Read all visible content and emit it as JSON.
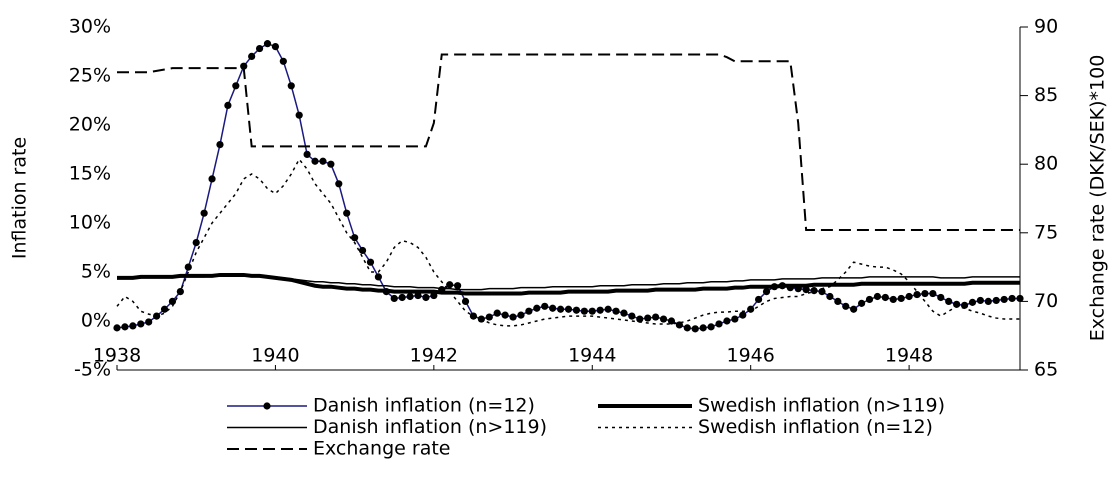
{
  "chart_data": {
    "type": "line",
    "y_label": "Inflation rate",
    "y2_label": "Exchange rate (DKK/SEK)*100",
    "xlim": [
      1938,
      1949.4
    ],
    "xticks": [
      1938,
      1940,
      1942,
      1944,
      1946,
      1948
    ],
    "ylim": [
      -5,
      30
    ],
    "yticks": [
      {
        "value": -5,
        "label": "-5%"
      },
      {
        "value": 0,
        "label": "0%"
      },
      {
        "value": 5,
        "label": "5%"
      },
      {
        "value": 10,
        "label": "10%"
      },
      {
        "value": 15,
        "label": "15%"
      },
      {
        "value": 20,
        "label": "20%"
      },
      {
        "value": 25,
        "label": "25%"
      },
      {
        "value": 30,
        "label": "30%"
      }
    ],
    "y2lim": [
      65,
      90
    ],
    "y2ticks": [
      65,
      70,
      75,
      80,
      85,
      90
    ],
    "x": [
      1938.0,
      1938.1,
      1938.2,
      1938.3,
      1938.4,
      1938.5,
      1938.6,
      1938.7,
      1938.8,
      1938.9,
      1939.0,
      1939.1,
      1939.2,
      1939.3,
      1939.4,
      1939.5,
      1939.6,
      1939.7,
      1939.8,
      1939.9,
      1940.0,
      1940.1,
      1940.2,
      1940.3,
      1940.4,
      1940.5,
      1940.6,
      1940.7,
      1940.8,
      1940.9,
      1941.0,
      1941.1,
      1941.2,
      1941.3,
      1941.4,
      1941.5,
      1941.6,
      1941.7,
      1941.8,
      1941.9,
      1942.0,
      1942.1,
      1942.2,
      1942.3,
      1942.4,
      1942.5,
      1942.6,
      1942.7,
      1942.8,
      1942.9,
      1943.0,
      1943.1,
      1943.2,
      1943.3,
      1943.4,
      1943.5,
      1943.6,
      1943.7,
      1943.8,
      1943.9,
      1944.0,
      1944.1,
      1944.2,
      1944.3,
      1944.4,
      1944.5,
      1944.6,
      1944.7,
      1944.8,
      1944.9,
      1945.0,
      1945.1,
      1945.2,
      1945.3,
      1945.4,
      1945.5,
      1945.6,
      1945.7,
      1945.8,
      1945.9,
      1946.0,
      1946.1,
      1946.2,
      1946.3,
      1946.4,
      1946.5,
      1946.6,
      1946.7,
      1946.8,
      1946.9,
      1947.0,
      1947.1,
      1947.2,
      1947.3,
      1947.4,
      1947.5,
      1947.6,
      1947.7,
      1947.8,
      1947.9,
      1948.0,
      1948.1,
      1948.2,
      1948.3,
      1948.4,
      1948.5,
      1948.6,
      1948.7,
      1948.8,
      1948.9,
      1949.0,
      1949.1,
      1949.2,
      1949.3,
      1949.4
    ],
    "series": [
      {
        "name": "Danish inflation (n=12)",
        "color": "#1a1a80",
        "width": 1.5,
        "dash": "solid",
        "marker": "circle",
        "marker_color": "#000000",
        "values": [
          -0.7,
          -0.6,
          -0.5,
          -0.3,
          -0.1,
          0.5,
          1.2,
          2.0,
          3.0,
          5.5,
          8.0,
          11.0,
          14.5,
          18.0,
          22.0,
          24.0,
          26.0,
          27.0,
          27.8,
          28.3,
          28.0,
          26.5,
          24.0,
          21.0,
          17.0,
          16.3,
          16.3,
          16.0,
          14.0,
          11.0,
          8.5,
          7.2,
          6.0,
          4.5,
          3.0,
          2.3,
          2.4,
          2.5,
          2.6,
          2.4,
          2.6,
          3.2,
          3.7,
          3.6,
          2.0,
          0.5,
          0.2,
          0.4,
          0.8,
          0.6,
          0.4,
          0.6,
          1.0,
          1.3,
          1.5,
          1.3,
          1.2,
          1.2,
          1.1,
          1.0,
          1.0,
          1.1,
          1.2,
          1.0,
          0.8,
          0.5,
          0.2,
          0.3,
          0.4,
          0.2,
          0.0,
          -0.4,
          -0.7,
          -0.8,
          -0.7,
          -0.6,
          -0.3,
          0.0,
          0.2,
          0.6,
          1.2,
          2.2,
          3.0,
          3.5,
          3.6,
          3.4,
          3.3,
          3.2,
          3.1,
          3.0,
          2.5,
          2.0,
          1.5,
          1.2,
          1.8,
          2.2,
          2.5,
          2.4,
          2.2,
          2.3,
          2.5,
          2.7,
          2.8,
          2.8,
          2.4,
          2.0,
          1.7,
          1.6,
          1.9,
          2.1,
          2.0,
          2.1,
          2.2,
          2.3,
          2.3
        ]
      },
      {
        "name": "Swedish inflation (n>119)",
        "color": "#000000",
        "width": 4,
        "dash": "solid",
        "values": [
          4.4,
          4.4,
          4.4,
          4.5,
          4.5,
          4.5,
          4.5,
          4.5,
          4.6,
          4.6,
          4.6,
          4.6,
          4.6,
          4.7,
          4.7,
          4.7,
          4.7,
          4.6,
          4.6,
          4.5,
          4.4,
          4.3,
          4.2,
          4.0,
          3.8,
          3.6,
          3.5,
          3.5,
          3.4,
          3.3,
          3.3,
          3.2,
          3.2,
          3.1,
          3.1,
          3.0,
          3.0,
          3.0,
          3.0,
          3.0,
          3.0,
          2.9,
          2.9,
          2.9,
          2.8,
          2.8,
          2.8,
          2.8,
          2.8,
          2.8,
          2.8,
          2.8,
          2.9,
          2.9,
          2.9,
          2.9,
          2.9,
          3.0,
          3.0,
          3.0,
          3.0,
          3.0,
          3.0,
          3.1,
          3.1,
          3.1,
          3.1,
          3.1,
          3.2,
          3.2,
          3.2,
          3.2,
          3.2,
          3.2,
          3.3,
          3.3,
          3.3,
          3.3,
          3.4,
          3.4,
          3.5,
          3.5,
          3.5,
          3.5,
          3.6,
          3.6,
          3.6,
          3.6,
          3.7,
          3.7,
          3.7,
          3.7,
          3.7,
          3.7,
          3.8,
          3.8,
          3.8,
          3.8,
          3.8,
          3.8,
          3.8,
          3.8,
          3.8,
          3.8,
          3.8,
          3.8,
          3.8,
          3.8,
          3.9,
          3.9,
          3.9,
          3.9,
          3.9,
          3.9,
          3.9
        ]
      },
      {
        "name": "Danish inflation (n>119)",
        "color": "#000000",
        "width": 1.5,
        "dash": "solid",
        "values": [
          4.4,
          4.4,
          4.4,
          4.4,
          4.5,
          4.5,
          4.5,
          4.5,
          4.5,
          4.5,
          4.5,
          4.5,
          4.6,
          4.6,
          4.6,
          4.6,
          4.6,
          4.6,
          4.6,
          4.5,
          4.4,
          4.4,
          4.3,
          4.2,
          4.1,
          4.0,
          4.0,
          3.9,
          3.9,
          3.8,
          3.8,
          3.7,
          3.7,
          3.6,
          3.6,
          3.5,
          3.5,
          3.5,
          3.4,
          3.4,
          3.4,
          3.3,
          3.3,
          3.2,
          3.2,
          3.2,
          3.2,
          3.3,
          3.3,
          3.3,
          3.3,
          3.4,
          3.4,
          3.4,
          3.4,
          3.5,
          3.5,
          3.5,
          3.5,
          3.5,
          3.5,
          3.6,
          3.6,
          3.6,
          3.6,
          3.7,
          3.7,
          3.7,
          3.7,
          3.8,
          3.8,
          3.8,
          3.9,
          3.9,
          3.9,
          4.0,
          4.0,
          4.0,
          4.1,
          4.1,
          4.2,
          4.2,
          4.2,
          4.2,
          4.3,
          4.3,
          4.3,
          4.3,
          4.3,
          4.4,
          4.4,
          4.4,
          4.4,
          4.4,
          4.4,
          4.5,
          4.5,
          4.5,
          4.5,
          4.5,
          4.5,
          4.5,
          4.5,
          4.5,
          4.4,
          4.4,
          4.4,
          4.4,
          4.5,
          4.5,
          4.5,
          4.5,
          4.5,
          4.5,
          4.5
        ]
      },
      {
        "name": "Swedish inflation (n=12)",
        "color": "#000000",
        "width": 1.5,
        "dash": "dotted",
        "values": [
          1.5,
          2.5,
          2.0,
          1.0,
          0.7,
          0.5,
          0.8,
          1.5,
          3.0,
          5.0,
          7.0,
          8.5,
          10.0,
          11.0,
          12.0,
          13.0,
          14.5,
          15.0,
          14.5,
          13.5,
          13.0,
          13.8,
          15.0,
          16.5,
          15.5,
          14.0,
          13.0,
          12.0,
          10.5,
          9.0,
          8.0,
          6.5,
          5.0,
          5.0,
          6.0,
          7.5,
          8.2,
          8.0,
          7.5,
          6.5,
          5.0,
          4.0,
          3.0,
          2.0,
          1.0,
          0.5,
          0.2,
          -0.2,
          -0.4,
          -0.5,
          -0.5,
          -0.4,
          -0.2,
          0.0,
          0.2,
          0.3,
          0.4,
          0.5,
          0.5,
          0.5,
          0.5,
          0.4,
          0.3,
          0.2,
          0.1,
          0.0,
          -0.1,
          -0.2,
          -0.3,
          -0.3,
          -0.3,
          -0.2,
          0.0,
          0.3,
          0.6,
          0.8,
          0.9,
          0.9,
          1.0,
          1.0,
          1.0,
          1.5,
          2.0,
          2.3,
          2.4,
          2.5,
          2.5,
          2.8,
          3.0,
          3.3,
          3.5,
          4.2,
          5.0,
          6.0,
          5.8,
          5.6,
          5.5,
          5.5,
          5.2,
          4.8,
          4.0,
          3.0,
          2.0,
          1.0,
          0.5,
          1.0,
          1.5,
          1.3,
          1.0,
          0.8,
          0.5,
          0.3,
          0.2,
          0.2,
          0.2
        ]
      },
      {
        "name": "Exchange rate",
        "color": "#000000",
        "width": 2,
        "dash": "dashed",
        "axis": "y2",
        "values": [
          86.7,
          86.7,
          86.7,
          86.7,
          86.7,
          86.8,
          86.9,
          87.0,
          87.0,
          87.0,
          87.0,
          87.0,
          87.0,
          87.0,
          87.0,
          87.0,
          87.0,
          81.3,
          81.3,
          81.3,
          81.3,
          81.3,
          81.3,
          81.3,
          81.3,
          81.3,
          81.3,
          81.3,
          81.3,
          81.3,
          81.3,
          81.3,
          81.3,
          81.3,
          81.3,
          81.3,
          81.3,
          81.3,
          81.3,
          81.3,
          83.0,
          88.0,
          88.0,
          88.0,
          88.0,
          88.0,
          88.0,
          88.0,
          88.0,
          88.0,
          88.0,
          88.0,
          88.0,
          88.0,
          88.0,
          88.0,
          88.0,
          88.0,
          88.0,
          88.0,
          88.0,
          88.0,
          88.0,
          88.0,
          88.0,
          88.0,
          88.0,
          88.0,
          88.0,
          88.0,
          88.0,
          88.0,
          88.0,
          88.0,
          88.0,
          88.0,
          88.0,
          87.8,
          87.5,
          87.5,
          87.5,
          87.5,
          87.5,
          87.5,
          87.5,
          87.5,
          83.0,
          75.2,
          75.2,
          75.2,
          75.2,
          75.2,
          75.2,
          75.2,
          75.2,
          75.2,
          75.2,
          75.2,
          75.2,
          75.2,
          75.2,
          75.2,
          75.2,
          75.2,
          75.2,
          75.2,
          75.2,
          75.2,
          75.2,
          75.2,
          75.2,
          75.2,
          75.2,
          75.2,
          75.2
        ]
      }
    ],
    "legend": "bottom"
  }
}
